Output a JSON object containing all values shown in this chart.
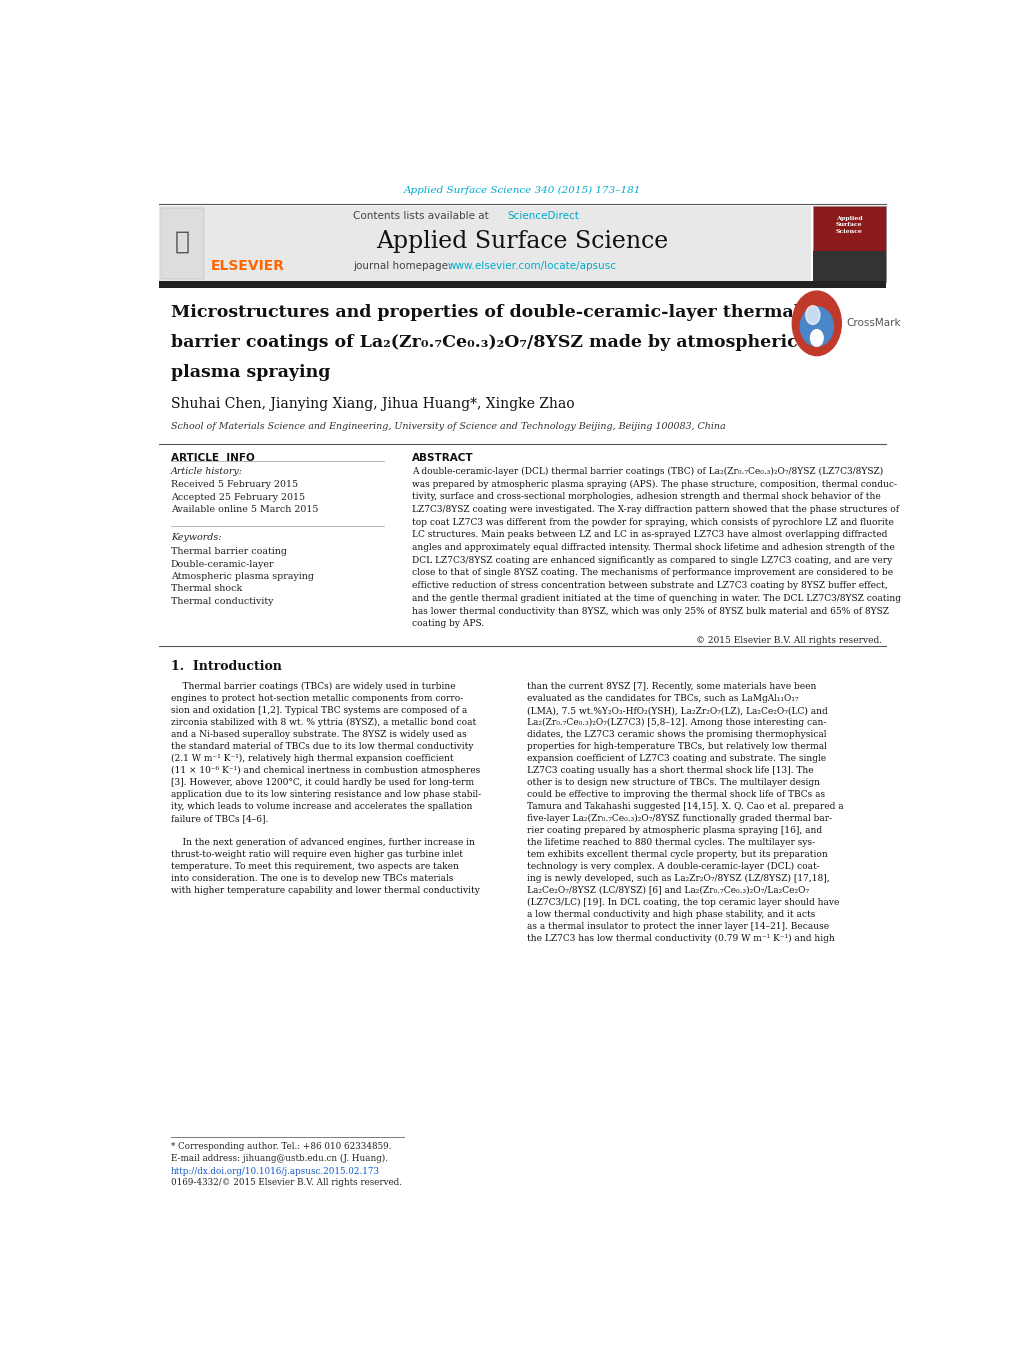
{
  "page_width": 10.2,
  "page_height": 13.51,
  "bg_color": "#ffffff",
  "journal_cite": "Applied Surface Science 340 (2015) 173–181",
  "journal_cite_color": "#00aacc",
  "sciencedirect_color": "#00aacc",
  "journal_name": "Applied Surface Science",
  "journal_url": "www.elsevier.com/locate/apsusc",
  "journal_url_color": "#00aacc",
  "elsevier_color": "#ff6600",
  "header_bg": "#e8e8e8",
  "dark_bar_color": "#222222",
  "affiliation": "School of Materials Science and Engineering, University of Science and Technology Beijing, Beijing 100083, China",
  "keyword1": "Thermal barrier coating",
  "keyword2": "Double-ceramic-layer",
  "keyword3": "Atmospheric plasma spraying",
  "keyword4": "Thermal shock",
  "keyword5": "Thermal conductivity",
  "copyright": "© 2015 Elsevier B.V. All rights reserved.",
  "footnote_star": "* Corresponding author. Tel.: +86 010 62334859.",
  "footnote_email": "E-mail address: jihuang@ustb.edu.cn (J. Huang).",
  "footnote_doi": "http://dx.doi.org/10.1016/j.apsusc.2015.02.173",
  "footnote_issn": "0169-4332/© 2015 Elsevier B.V. All rights reserved.",
  "abstract_lines": [
    "A double-ceramic-layer (DCL) thermal barrier coatings (TBC) of La₂(Zr₀.₇Ce₀.₃)₂O₇/8YSZ (LZ7C3/8YSZ)",
    "was prepared by atmospheric plasma spraying (APS). The phase structure, composition, thermal conduc-",
    "tivity, surface and cross-sectional morphologies, adhesion strength and thermal shock behavior of the",
    "LZ7C3/8YSZ coating were investigated. The X-ray diffraction pattern showed that the phase structures of",
    "top coat LZ7C3 was different from the powder for spraying, which consists of pyrochlore LZ and fluorite",
    "LC structures. Main peaks between LZ and LC in as-sprayed LZ7C3 have almost overlapping diffracted",
    "angles and approximately equal diffracted intensity. Thermal shock lifetime and adhesion strength of the",
    "DCL LZ7C3/8YSZ coating are enhanced significantly as compared to single LZ7C3 coating, and are very",
    "close to that of single 8YSZ coating. The mechanisms of performance improvement are considered to be",
    "effictive reduction of stress concentration between substrate and LZ7C3 coating by 8YSZ buffer effect,",
    "and the gentle thermal gradient initiated at the time of quenching in water. The DCL LZ7C3/8YSZ coating",
    "has lower thermal conductivity than 8YSZ, which was only 25% of 8YSZ bulk material and 65% of 8YSZ",
    "coating by APS."
  ],
  "col1_lines": [
    "    Thermal barrier coatings (TBCs) are widely used in turbine",
    "engines to protect hot-section metallic components from corro-",
    "sion and oxidation [1,2]. Typical TBC systems are composed of a",
    "zirconia stabilized with 8 wt. % yttria (8YSZ), a metallic bond coat",
    "and a Ni-based superalloy substrate. The 8YSZ is widely used as",
    "the standard material of TBCs due to its low thermal conductivity",
    "(2.1 W m⁻¹ K⁻¹), relatively high thermal expansion coefficient",
    "(11 × 10⁻⁶ K⁻¹) and chemical inertness in combustion atmospheres",
    "[3]. However, above 1200°C, it could hardly be used for long-term",
    "application due to its low sintering resistance and low phase stabil-",
    "ity, which leads to volume increase and accelerates the spallation",
    "failure of TBCs [4–6].",
    "",
    "    In the next generation of advanced engines, further increase in",
    "thrust-to-weight ratio will require even higher gas turbine inlet",
    "temperature. To meet this requirement, two aspects are taken",
    "into consideration. The one is to develop new TBCs materials",
    "with higher temperature capability and lower thermal conductivity"
  ],
  "col2_lines": [
    "than the current 8YSZ [7]. Recently, some materials have been",
    "evaluated as the candidates for TBCs, such as LaMgAl₁₁O₁₇",
    "(LMA), 7.5 wt.%Y₂O₃-HfO₂(YSH), La₂Zr₂O₇(LZ), La₂Ce₂O₇(LC) and",
    "La₂(Zr₀.₇Ce₀.₃)₂O₇(LZ7C3) [5,8–12]. Among those interesting can-",
    "didates, the LZ7C3 ceramic shows the promising thermophysical",
    "properties for high-temperature TBCs, but relatively low thermal",
    "expansion coefficient of LZ7C3 coating and substrate. The single",
    "LZ7C3 coating usually has a short thermal shock life [13]. The",
    "other is to design new structure of TBCs. The multilayer design",
    "could be effective to improving the thermal shock life of TBCs as",
    "Tamura and Takahashi suggested [14,15]. X. Q. Cao et al. prepared a",
    "five-layer La₂(Zr₀.₇Ce₀.₃)₂O₇/8YSZ functionally graded thermal bar-",
    "rier coating prepared by atmospheric plasma spraying [16], and",
    "the lifetime reached to 880 thermal cycles. The multilayer sys-",
    "tem exhibits excellent thermal cycle property, but its preparation",
    "technology is very complex. A double-ceramic-layer (DCL) coat-",
    "ing is newly developed, such as La₂Zr₂O₇/8YSZ (LZ/8YSZ) [17,18],",
    "La₂Ce₂O₇/8YSZ (LC/8YSZ) [6] and La₂(Zr₀.₇Ce₀.₃)₂O₇/La₂Ce₂O₇",
    "(LZ7C3/LC) [19]. In DCL coating, the top ceramic layer should have",
    "a low thermal conductivity and high phase stability, and it acts",
    "as a thermal insulator to protect the inner layer [14–21]. Because",
    "the LZ7C3 has low thermal conductivity (0.79 W m⁻¹ K⁻¹) and high"
  ]
}
